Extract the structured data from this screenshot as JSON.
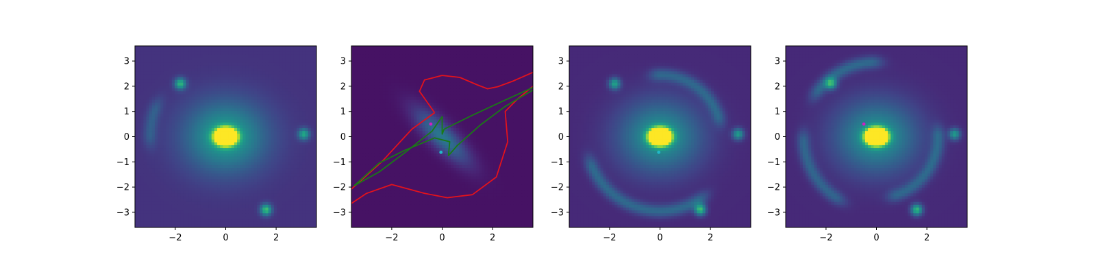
{
  "figure": {
    "panel_count": 4,
    "colormap": "viridis"
  },
  "chart_data": [
    {
      "type": "heatmap",
      "title": "",
      "xlabel": "",
      "ylabel": "",
      "xlim": [
        -3.6,
        3.6
      ],
      "ylim": [
        -3.6,
        3.6
      ],
      "xticks": [
        -2,
        0,
        2
      ],
      "yticks": [
        3,
        2,
        1,
        0,
        -1,
        -2,
        -3
      ],
      "grid": false,
      "legend": "none",
      "background_level": 0.15,
      "lens_galaxy": {
        "x": 0.0,
        "y": 0.0,
        "amplitude": 1.0,
        "size": 0.28
      },
      "halo": {
        "x": 0.0,
        "y": 0.0,
        "amplitude": 0.42,
        "size": 1.4
      },
      "blobs": [
        {
          "x": -1.8,
          "y": 2.1,
          "amplitude": 0.5
        },
        {
          "x": 3.1,
          "y": 0.1,
          "amplitude": 0.45
        },
        {
          "x": 1.6,
          "y": -2.9,
          "amplitude": 0.55
        }
      ],
      "arcs": [
        {
          "center": [
            0,
            0
          ],
          "radius": 3.0,
          "angle_start_deg": 160,
          "angle_end_deg": 178,
          "amplitude": 0.15
        }
      ],
      "markers": []
    },
    {
      "type": "heatmap",
      "title": "",
      "xlabel": "",
      "ylabel": "",
      "xlim": [
        -3.6,
        3.6
      ],
      "ylim": [
        -3.6,
        3.6
      ],
      "xticks": [
        -2,
        0,
        2
      ],
      "yticks": [
        3,
        2,
        1,
        0,
        -1,
        -2,
        -3
      ],
      "grid": false,
      "legend": "none",
      "background_level": 0.05,
      "diagonal_source": {
        "amplitude": 0.35,
        "angle_deg": -45,
        "long_size": 1.4,
        "short_size": 0.45
      },
      "markers": [
        {
          "x": -0.45,
          "y": 0.5,
          "color": "#d11fc4"
        },
        {
          "x": -0.05,
          "y": -0.62,
          "color": "#22b8c8"
        }
      ],
      "curves": [
        {
          "name_hint": "critical-curve",
          "color": "#e3121c",
          "segments": [
            [
              [
                -0.3,
                0.95
              ],
              [
                -0.9,
                1.8
              ],
              [
                -0.7,
                2.25
              ],
              [
                0,
                2.43
              ],
              [
                0.7,
                2.35
              ],
              [
                1.4,
                2.05
              ],
              [
                1.8,
                1.9
              ],
              [
                2.2,
                1.98
              ],
              [
                2.8,
                2.2
              ],
              [
                3.6,
                2.55
              ]
            ],
            [
              [
                -0.3,
                0.95
              ],
              [
                -1.2,
                0.3
              ],
              [
                -2.4,
                -1.0
              ],
              [
                -3.6,
                -2.08
              ]
            ],
            [
              [
                3.6,
                2.0
              ],
              [
                3.0,
                1.5
              ],
              [
                2.5,
                1.0
              ],
              [
                2.6,
                -0.2
              ],
              [
                2.15,
                -1.6
              ],
              [
                1.2,
                -2.3
              ],
              [
                0.2,
                -2.42
              ],
              [
                -0.7,
                -2.25
              ],
              [
                -2.0,
                -1.9
              ],
              [
                -3.0,
                -2.25
              ],
              [
                -3.6,
                -2.65
              ]
            ]
          ]
        },
        {
          "name_hint": "caustic",
          "color": "#1a7a16",
          "segments": [
            [
              [
                -3.5,
                -1.95
              ],
              [
                -2.5,
                -1.4
              ],
              [
                -1.5,
                -0.65
              ],
              [
                -0.4,
                0.22
              ],
              [
                0.0,
                0.8
              ],
              [
                0.0,
                0.1
              ],
              [
                0.08,
                0.3
              ],
              [
                1.2,
                0.85
              ],
              [
                2.5,
                1.45
              ],
              [
                3.6,
                1.95
              ]
            ],
            [
              [
                -3.5,
                -1.95
              ],
              [
                -2.5,
                -1.05
              ],
              [
                -1.5,
                -0.55
              ],
              [
                -0.3,
                -0.05
              ],
              [
                0.3,
                -0.2
              ],
              [
                0.25,
                -0.75
              ],
              [
                0.6,
                -0.35
              ],
              [
                1.5,
                0.45
              ],
              [
                2.5,
                1.2
              ],
              [
                3.6,
                1.85
              ]
            ]
          ]
        }
      ]
    },
    {
      "type": "heatmap",
      "title": "",
      "xlabel": "",
      "ylabel": "",
      "xlim": [
        -3.6,
        3.6
      ],
      "ylim": [
        -3.6,
        3.6
      ],
      "xticks": [
        -2,
        0,
        2
      ],
      "yticks": [
        3,
        2,
        1,
        0,
        -1,
        -2,
        -3
      ],
      "grid": false,
      "legend": "none",
      "background_level": 0.12,
      "lens_galaxy": {
        "x": 0.0,
        "y": 0.0,
        "amplitude": 1.0,
        "size": 0.28
      },
      "halo": {
        "x": 0.0,
        "y": 0.0,
        "amplitude": 0.4,
        "size": 1.4
      },
      "blobs": [
        {
          "x": -1.8,
          "y": 2.1,
          "amplitude": 0.45
        },
        {
          "x": 3.1,
          "y": 0.1,
          "amplitude": 0.42
        },
        {
          "x": 1.6,
          "y": -2.9,
          "amplitude": 0.55
        }
      ],
      "arcs": [
        {
          "center": [
            0,
            0
          ],
          "radius": 2.95,
          "angle_start_deg": 205,
          "angle_end_deg": 300,
          "amplitude": 0.22
        },
        {
          "center": [
            0,
            0
          ],
          "radius": 2.45,
          "angle_start_deg": 20,
          "angle_end_deg": 90,
          "amplitude": 0.2
        }
      ],
      "markers": [
        {
          "x": -0.05,
          "y": -0.62,
          "color": "#22b8c8"
        }
      ]
    },
    {
      "type": "heatmap",
      "title": "",
      "xlabel": "",
      "ylabel": "",
      "xlim": [
        -3.6,
        3.6
      ],
      "ylim": [
        -3.6,
        3.6
      ],
      "xticks": [
        -2,
        0,
        2
      ],
      "yticks": [
        3,
        2,
        1,
        0,
        -1,
        -2,
        -3
      ],
      "grid": false,
      "legend": "none",
      "background_level": 0.12,
      "lens_galaxy": {
        "x": 0.0,
        "y": 0.0,
        "amplitude": 1.0,
        "size": 0.28
      },
      "halo": {
        "x": 0.0,
        "y": 0.0,
        "amplitude": 0.4,
        "size": 1.4
      },
      "blobs": [
        {
          "x": -1.8,
          "y": 2.1,
          "amplitude": 0.45
        },
        {
          "x": 3.1,
          "y": 0.1,
          "amplitude": 0.42
        },
        {
          "x": 1.6,
          "y": -2.9,
          "amplitude": 0.55
        }
      ],
      "arcs": [
        {
          "center": [
            0,
            0
          ],
          "radius": 2.95,
          "angle_start_deg": 95,
          "angle_end_deg": 140,
          "amplitude": 0.22
        },
        {
          "center": [
            0,
            0
          ],
          "radius": 2.9,
          "angle_start_deg": 185,
          "angle_end_deg": 235,
          "amplitude": 0.2
        },
        {
          "center": [
            0,
            0
          ],
          "radius": 2.45,
          "angle_start_deg": 290,
          "angle_end_deg": 360,
          "amplitude": 0.2
        }
      ],
      "markers": [
        {
          "x": -0.5,
          "y": 0.5,
          "color": "#d11fc4"
        }
      ]
    }
  ]
}
